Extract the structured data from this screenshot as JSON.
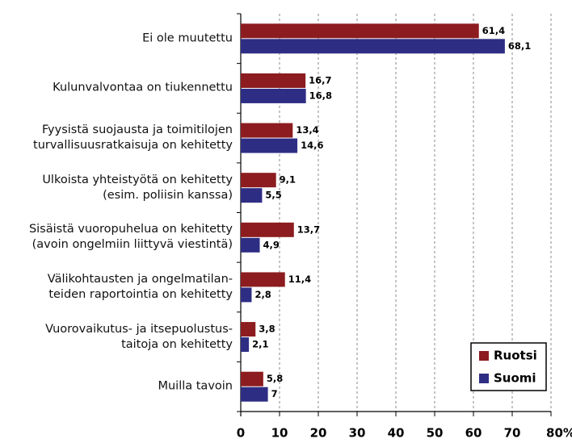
{
  "chart_data": {
    "type": "bar",
    "orientation": "horizontal",
    "categories": [
      "Ei ole muutettu",
      "Kulunvalvontaa on tiukennettu",
      "Fyysistä suojausta ja toimitilojen\nturvallisuusratkaisuja on kehitetty",
      "Ulkoista yhteistyötä on kehitetty\n(esim. poliisin kanssa)",
      "Sisäistä vuoropuhelua on kehitetty\n(avoin ongelmiin liittyvä viestintä)",
      "Välikohtausten ja ongelmatilan-\nteiden raportointia on kehitetty",
      "Vuorovaikutus- ja itsepuolustus-\ntaitoja  on kehitetty",
      "Muilla tavoin"
    ],
    "series": [
      {
        "name": "Ruotsi",
        "color": "#8c1c1f",
        "values": [
          61.4,
          16.7,
          13.4,
          9.1,
          13.7,
          11.4,
          3.8,
          5.8
        ],
        "value_labels": [
          "61,4",
          "16,7",
          "13,4",
          "9,1",
          "13,7",
          "11,4",
          "3,8",
          "5,8"
        ]
      },
      {
        "name": "Suomi",
        "color": "#2e2d84",
        "values": [
          68.1,
          16.8,
          14.6,
          5.5,
          4.9,
          2.8,
          2.1,
          7
        ],
        "value_labels": [
          "68,1",
          "16,8",
          "14,6",
          "5,5",
          "4,9",
          "2,8",
          "2,1",
          "7"
        ]
      }
    ],
    "xlim": [
      0,
      80
    ],
    "xticks": [
      0,
      10,
      20,
      30,
      40,
      50,
      60,
      70,
      {
        "value": 80,
        "label": "80%"
      }
    ],
    "grid": true,
    "legend": "lower right"
  }
}
